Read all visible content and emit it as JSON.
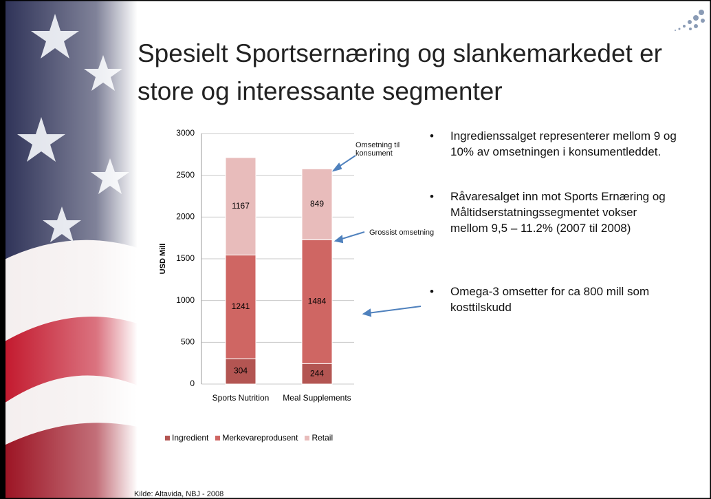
{
  "title": "Spesielt Sportsernæring og slankemarkedet er store og interessante segmenter",
  "chart_data": {
    "type": "bar",
    "stacked": true,
    "categories": [
      "Sports Nutrition",
      "Meal Supplements"
    ],
    "series": [
      {
        "name": "Ingredient",
        "color": "#b35552",
        "values": [
          304,
          244
        ]
      },
      {
        "name": "Merkevareprodusent",
        "color": "#cf6663",
        "values": [
          1241,
          1484
        ]
      },
      {
        "name": "Retail",
        "color": "#e8bcbb",
        "values": [
          1167,
          849
        ]
      }
    ],
    "ylim": [
      0,
      3000
    ],
    "yticks": [
      0,
      500,
      1000,
      1500,
      2000,
      2500,
      3000
    ],
    "ylabel": "USD Mill",
    "grid": true,
    "legend": "bottom",
    "annotations": [
      "Omsetning til konsument",
      "Grossist omsetning"
    ]
  },
  "bullets": [
    "Ingredienssalget representerer mellom 9 og 10% av omsetningen i konsumentleddet.",
    "Råvaresalget inn mot Sports Ernæring og Måltidserstatningssegmentet vokser mellom 9,5 – 11.2% (2007 til 2008)",
    "Omega-3 omsetter for ca 800 mill som kosttilskudd"
  ],
  "source": "Kilde: Altavida, NBJ - 2008"
}
